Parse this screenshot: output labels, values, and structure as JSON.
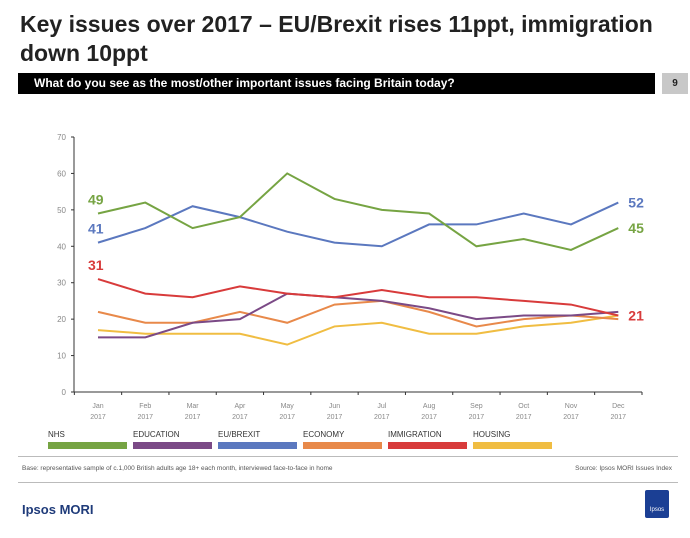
{
  "title": "Key issues over 2017 – EU/Brexit rises 11ppt, immigration down 10ppt",
  "question": "What do you see as the most/other important issues facing Britain today?",
  "page_number": "9",
  "chart_data": {
    "type": "line",
    "categories": [
      "Jan 2017",
      "Feb 2017",
      "Mar 2017",
      "Apr 2017",
      "May 2017",
      "Jun 2017",
      "Jul 2017",
      "Aug 2017",
      "Sep 2017",
      "Oct 2017",
      "Nov 2017",
      "Dec 2017"
    ],
    "ylim": [
      0,
      70
    ],
    "yticks": [
      0,
      10,
      20,
      30,
      40,
      50,
      60,
      70
    ],
    "grid": false,
    "legend_placement": "bottom",
    "series": [
      {
        "name": "NHS",
        "color": "#76a443",
        "values": [
          49,
          52,
          45,
          48,
          60,
          53,
          50,
          49,
          40,
          42,
          39,
          45
        ],
        "start_label": "49",
        "end_label": "45"
      },
      {
        "name": "EDUCATION",
        "color": "#7b4a86",
        "values": [
          15,
          15,
          19,
          20,
          27,
          26,
          25,
          23,
          20,
          21,
          21,
          22
        ]
      },
      {
        "name": "EU/BREXIT",
        "color": "#5b78bf",
        "values": [
          41,
          45,
          51,
          48,
          44,
          41,
          40,
          46,
          46,
          49,
          46,
          52
        ],
        "start_label": "41",
        "end_label": "52"
      },
      {
        "name": "ECONOMY",
        "color": "#e8894a",
        "values": [
          22,
          19,
          19,
          22,
          19,
          24,
          25,
          22,
          18,
          20,
          21,
          20
        ]
      },
      {
        "name": "IMMIGRATION",
        "color": "#d83b3b",
        "values": [
          31,
          27,
          26,
          29,
          27,
          26,
          28,
          26,
          26,
          25,
          24,
          21
        ],
        "start_label": "31",
        "end_label": "21"
      },
      {
        "name": "HOUSING",
        "color": "#f0bd42",
        "values": [
          17,
          16,
          16,
          16,
          13,
          18,
          19,
          16,
          16,
          18,
          19,
          21
        ]
      }
    ]
  },
  "footer": {
    "base": "Base: representative sample of c.1,000 British adults age 18+ each month, interviewed face-to-face in home",
    "source": "Source: Ipsos MORI Issues Index",
    "brand": "Ipsos MORI",
    "logo_text": "Ipsos"
  }
}
